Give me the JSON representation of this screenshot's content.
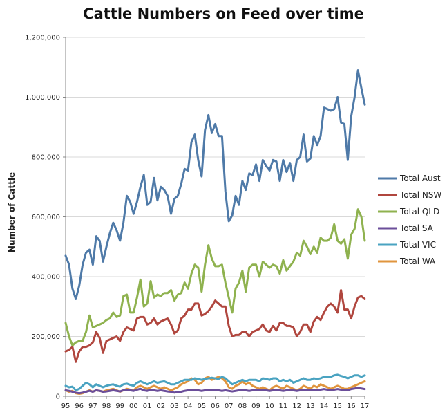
{
  "chart_data": {
    "type": "line",
    "title": "Cattle Numbers on Feed over time",
    "xlabel": "",
    "ylabel": "Number of Cattle",
    "x_ticks": [
      "95",
      "96",
      "97",
      "98",
      "99",
      "00",
      "01",
      "02",
      "03",
      "04",
      "05",
      "06",
      "07",
      "08",
      "09",
      "10",
      "11",
      "12",
      "13",
      "14",
      "15",
      "16",
      "17"
    ],
    "ylim": [
      0,
      1200000
    ],
    "y_ticks": [
      0,
      200000,
      400000,
      600000,
      800000,
      1000000,
      1200000
    ],
    "y_tick_labels": [
      "0",
      "200,000",
      "400,000",
      "600,000",
      "800,000",
      "1,000,000",
      "1,200,000"
    ],
    "grid": "horizontal",
    "legend_position": "right",
    "series": [
      {
        "name": "Total Aust",
        "color": "#4F7AA8",
        "values": [
          470000,
          440000,
          360000,
          325000,
          370000,
          440000,
          480000,
          490000,
          440000,
          535000,
          520000,
          450000,
          500000,
          545000,
          580000,
          555000,
          520000,
          580000,
          670000,
          650000,
          610000,
          650000,
          700000,
          740000,
          640000,
          650000,
          730000,
          655000,
          700000,
          690000,
          670000,
          610000,
          660000,
          670000,
          710000,
          760000,
          755000,
          850000,
          875000,
          790000,
          735000,
          890000,
          940000,
          880000,
          910000,
          870000,
          870000,
          685000,
          585000,
          605000,
          670000,
          640000,
          720000,
          690000,
          745000,
          740000,
          775000,
          720000,
          790000,
          770000,
          755000,
          790000,
          785000,
          720000,
          790000,
          750000,
          780000,
          720000,
          790000,
          800000,
          875000,
          785000,
          795000,
          870000,
          840000,
          870000,
          965000,
          960000,
          955000,
          960000,
          1000000,
          915000,
          910000,
          790000,
          935000,
          1000000,
          1090000,
          1030000,
          975000
        ]
      },
      {
        "name": "Total NSW",
        "color": "#B0463E",
        "values": [
          150000,
          155000,
          165000,
          115000,
          150000,
          165000,
          165000,
          170000,
          180000,
          215000,
          195000,
          145000,
          185000,
          190000,
          195000,
          200000,
          185000,
          215000,
          230000,
          225000,
          220000,
          260000,
          265000,
          265000,
          240000,
          245000,
          260000,
          240000,
          250000,
          255000,
          260000,
          240000,
          210000,
          220000,
          260000,
          270000,
          290000,
          290000,
          310000,
          310000,
          270000,
          275000,
          285000,
          300000,
          320000,
          310000,
          300000,
          300000,
          235000,
          200000,
          205000,
          205000,
          215000,
          215000,
          200000,
          215000,
          220000,
          225000,
          240000,
          220000,
          215000,
          235000,
          220000,
          245000,
          245000,
          235000,
          235000,
          230000,
          200000,
          215000,
          240000,
          240000,
          215000,
          250000,
          265000,
          255000,
          280000,
          300000,
          310000,
          300000,
          280000,
          355000,
          290000,
          290000,
          260000,
          300000,
          330000,
          335000,
          325000
        ]
      },
      {
        "name": "Total QLD",
        "color": "#8FB24F",
        "values": [
          245000,
          200000,
          170000,
          180000,
          185000,
          185000,
          215000,
          270000,
          230000,
          235000,
          240000,
          245000,
          255000,
          260000,
          280000,
          265000,
          270000,
          335000,
          340000,
          280000,
          280000,
          330000,
          390000,
          300000,
          310000,
          385000,
          330000,
          340000,
          335000,
          345000,
          345000,
          355000,
          320000,
          340000,
          345000,
          380000,
          360000,
          410000,
          440000,
          430000,
          350000,
          440000,
          505000,
          460000,
          435000,
          435000,
          440000,
          380000,
          330000,
          280000,
          360000,
          380000,
          420000,
          350000,
          430000,
          440000,
          440000,
          400000,
          450000,
          440000,
          430000,
          440000,
          435000,
          410000,
          455000,
          420000,
          435000,
          450000,
          480000,
          470000,
          520000,
          500000,
          475000,
          500000,
          480000,
          530000,
          520000,
          520000,
          530000,
          575000,
          520000,
          510000,
          525000,
          460000,
          540000,
          560000,
          625000,
          600000,
          520000
        ]
      },
      {
        "name": "Total SA",
        "color": "#6B4E9A",
        "values": [
          20000,
          18000,
          15000,
          12000,
          10000,
          12000,
          15000,
          18000,
          15000,
          20000,
          18000,
          15000,
          16000,
          18000,
          20000,
          18000,
          16000,
          20000,
          22000,
          20000,
          18000,
          22000,
          25000,
          20000,
          18000,
          22000,
          20000,
          18000,
          20000,
          18000,
          16000,
          15000,
          12000,
          14000,
          15000,
          18000,
          20000,
          20000,
          22000,
          20000,
          18000,
          20000,
          22000,
          20000,
          22000,
          20000,
          18000,
          20000,
          18000,
          16000,
          18000,
          20000,
          22000,
          20000,
          18000,
          20000,
          22000,
          20000,
          22000,
          20000,
          18000,
          20000,
          22000,
          20000,
          18000,
          20000,
          22000,
          20000,
          18000,
          20000,
          22000,
          20000,
          20000,
          22000,
          20000,
          22000,
          24000,
          22000,
          20000,
          22000,
          24000,
          22000,
          20000,
          20000,
          24000,
          26000,
          28000,
          26000,
          24000
        ]
      },
      {
        "name": "Total VIC",
        "color": "#4AA3C1",
        "values": [
          35000,
          30000,
          32000,
          20000,
          25000,
          35000,
          45000,
          40000,
          30000,
          40000,
          35000,
          30000,
          35000,
          38000,
          40000,
          35000,
          32000,
          40000,
          42000,
          38000,
          35000,
          45000,
          50000,
          45000,
          40000,
          45000,
          50000,
          45000,
          48000,
          50000,
          45000,
          40000,
          40000,
          45000,
          50000,
          55000,
          55000,
          55000,
          60000,
          58000,
          55000,
          58000,
          60000,
          62000,
          60000,
          58000,
          65000,
          60000,
          50000,
          40000,
          45000,
          50000,
          55000,
          50000,
          55000,
          55000,
          55000,
          50000,
          60000,
          58000,
          55000,
          60000,
          60000,
          50000,
          55000,
          50000,
          55000,
          45000,
          50000,
          55000,
          60000,
          55000,
          55000,
          60000,
          58000,
          60000,
          65000,
          65000,
          65000,
          70000,
          72000,
          68000,
          65000,
          60000,
          65000,
          70000,
          70000,
          65000,
          70000
        ]
      },
      {
        "name": "Total WA",
        "color": "#E0953E",
        "values": [
          20000,
          15000,
          18000,
          10000,
          8000,
          10000,
          15000,
          20000,
          15000,
          20000,
          18000,
          15000,
          20000,
          22000,
          25000,
          20000,
          15000,
          20000,
          25000,
          22000,
          20000,
          30000,
          35000,
          30000,
          25000,
          30000,
          35000,
          30000,
          25000,
          30000,
          25000,
          20000,
          25000,
          30000,
          40000,
          45000,
          50000,
          60000,
          55000,
          40000,
          45000,
          60000,
          65000,
          55000,
          60000,
          65000,
          60000,
          50000,
          30000,
          25000,
          35000,
          40000,
          50000,
          40000,
          45000,
          35000,
          30000,
          25000,
          30000,
          25000,
          20000,
          30000,
          35000,
          30000,
          25000,
          35000,
          30000,
          25000,
          20000,
          25000,
          35000,
          30000,
          25000,
          35000,
          30000,
          40000,
          35000,
          30000,
          25000,
          30000,
          35000,
          30000,
          25000,
          25000,
          30000,
          35000,
          40000,
          45000,
          50000
        ]
      }
    ]
  }
}
